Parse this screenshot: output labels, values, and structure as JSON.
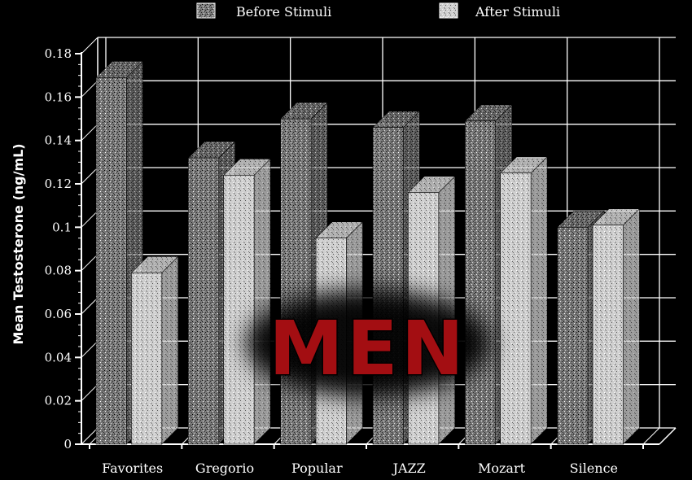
{
  "chart_data": {
    "type": "bar",
    "title": "",
    "xlabel": "",
    "ylabel": "Mean Testosterone (ng/mL)",
    "ylim": [
      0,
      0.18
    ],
    "yticks": [
      "0",
      "0.02",
      "0.04",
      "0.06",
      "0.08",
      "0.1",
      "0.12",
      "0.14",
      "0.16",
      "0.18"
    ],
    "categories": [
      "Favorites",
      "Gregorio",
      "Popular",
      "JAZZ",
      "Mozart",
      "Silence"
    ],
    "series": [
      {
        "name": "Before Stimuli",
        "values": [
          0.169,
          0.132,
          0.15,
          0.146,
          0.149,
          0.1
        ]
      },
      {
        "name": "After Stimuli",
        "values": [
          0.079,
          0.124,
          0.095,
          0.116,
          0.125,
          0.101
        ]
      }
    ],
    "legend_position": "top",
    "grid": true,
    "style": "3d-bars"
  },
  "overlay": {
    "text": "MEN"
  },
  "colors": {
    "background": "#000000",
    "before_bar": "#8a8a8a",
    "after_bar": "#d2d2d2",
    "gridline": "#ffffff",
    "overlay_text": "#a30e12"
  }
}
